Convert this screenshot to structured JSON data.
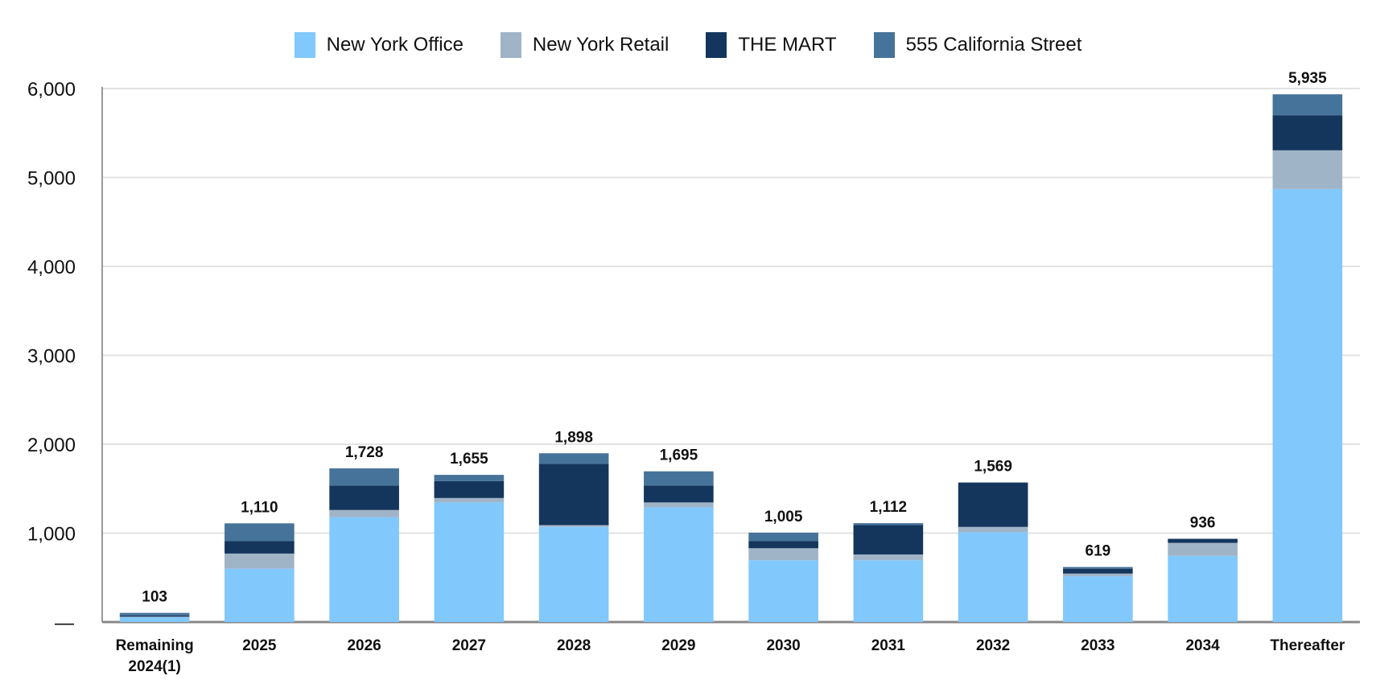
{
  "chart_data": {
    "type": "bar",
    "stacked": true,
    "categories": [
      "Remaining 2024(1)",
      "2025",
      "2026",
      "2027",
      "2028",
      "2029",
      "2030",
      "2031",
      "2032",
      "2033",
      "2034",
      "Thereafter"
    ],
    "series": [
      {
        "name": "New York Office",
        "color": "#81C8FC",
        "values": [
          55,
          600,
          1180,
          1345,
          1070,
          1290,
          695,
          695,
          1010,
          515,
          745,
          4870
        ]
      },
      {
        "name": "New York Retail",
        "color": "#A0B4C8",
        "values": [
          5,
          170,
          80,
          50,
          20,
          55,
          135,
          65,
          60,
          30,
          145,
          435
        ]
      },
      {
        "name": "THE MART",
        "color": "#14365C",
        "values": [
          15,
          140,
          275,
          190,
          690,
          190,
          80,
          330,
          499,
          55,
          46,
          395
        ]
      },
      {
        "name": "555 California Street",
        "color": "#467399",
        "values": [
          28,
          200,
          193,
          70,
          118,
          160,
          95,
          22,
          0,
          19,
          0,
          235
        ]
      }
    ],
    "totals": [
      "103",
      "1,110",
      "1,728",
      "1,655",
      "1,898",
      "1,695",
      "1,005",
      "1,112",
      "1,569",
      "619",
      "936",
      "5,935"
    ],
    "yticks": [
      "—",
      "1,000",
      "2,000",
      "3,000",
      "4,000",
      "5,000",
      "6,000"
    ],
    "ylim": [
      0,
      6000
    ],
    "grid": true,
    "legend_position": "top"
  }
}
